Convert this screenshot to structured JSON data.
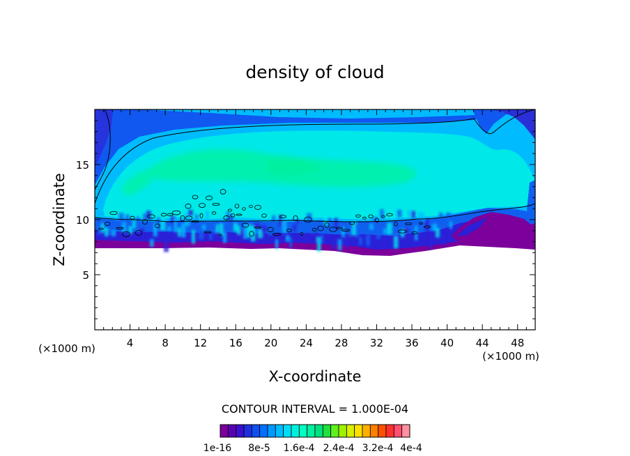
{
  "chart_data": {
    "type": "heatmap",
    "title": "density of cloud",
    "xlabel": "X-coordinate",
    "ylabel": "Z-coordinate",
    "x_unit": "(×1000 m)",
    "x_unit_right": "(×1000 m)",
    "xlim": [
      0,
      50
    ],
    "ylim": [
      0,
      20
    ],
    "x_ticks": [
      "4",
      "8",
      "12",
      "16",
      "20",
      "24",
      "28",
      "32",
      "36",
      "40",
      "44",
      "48"
    ],
    "x_tick_values": [
      4,
      8,
      12,
      16,
      20,
      24,
      28,
      32,
      36,
      40,
      44,
      48
    ],
    "y_ticks": [
      "5",
      "10",
      "15"
    ],
    "y_tick_values": [
      5,
      10,
      15
    ],
    "contour_interval_label": "CONTOUR INTERVAL = 1.000E-04",
    "colorbar": {
      "labels": [
        "1e-16",
        "8e-5",
        "1.6e-4",
        "2.4e-4",
        "3.2e-4",
        "4e-4"
      ],
      "colors": [
        "#7b009c",
        "#5a00b4",
        "#3a10cc",
        "#2030e0",
        "#1050f0",
        "#0070ff",
        "#0098ff",
        "#00bcff",
        "#00dcf8",
        "#00f0e0",
        "#00ffc0",
        "#00f0a0",
        "#00e080",
        "#20e040",
        "#60f020",
        "#a0f000",
        "#d8f000",
        "#ffe000",
        "#ffb000",
        "#ff8000",
        "#ff5000",
        "#ff3030",
        "#ff5070",
        "#ff90a0"
      ]
    },
    "field": {
      "cloud_base_km": 7.2,
      "top_left_km": 11.0,
      "top_right_km": 19.5,
      "thin_contour_km": 10.5,
      "purple_pocket_x_range_km": [
        40.5,
        50
      ]
    }
  }
}
